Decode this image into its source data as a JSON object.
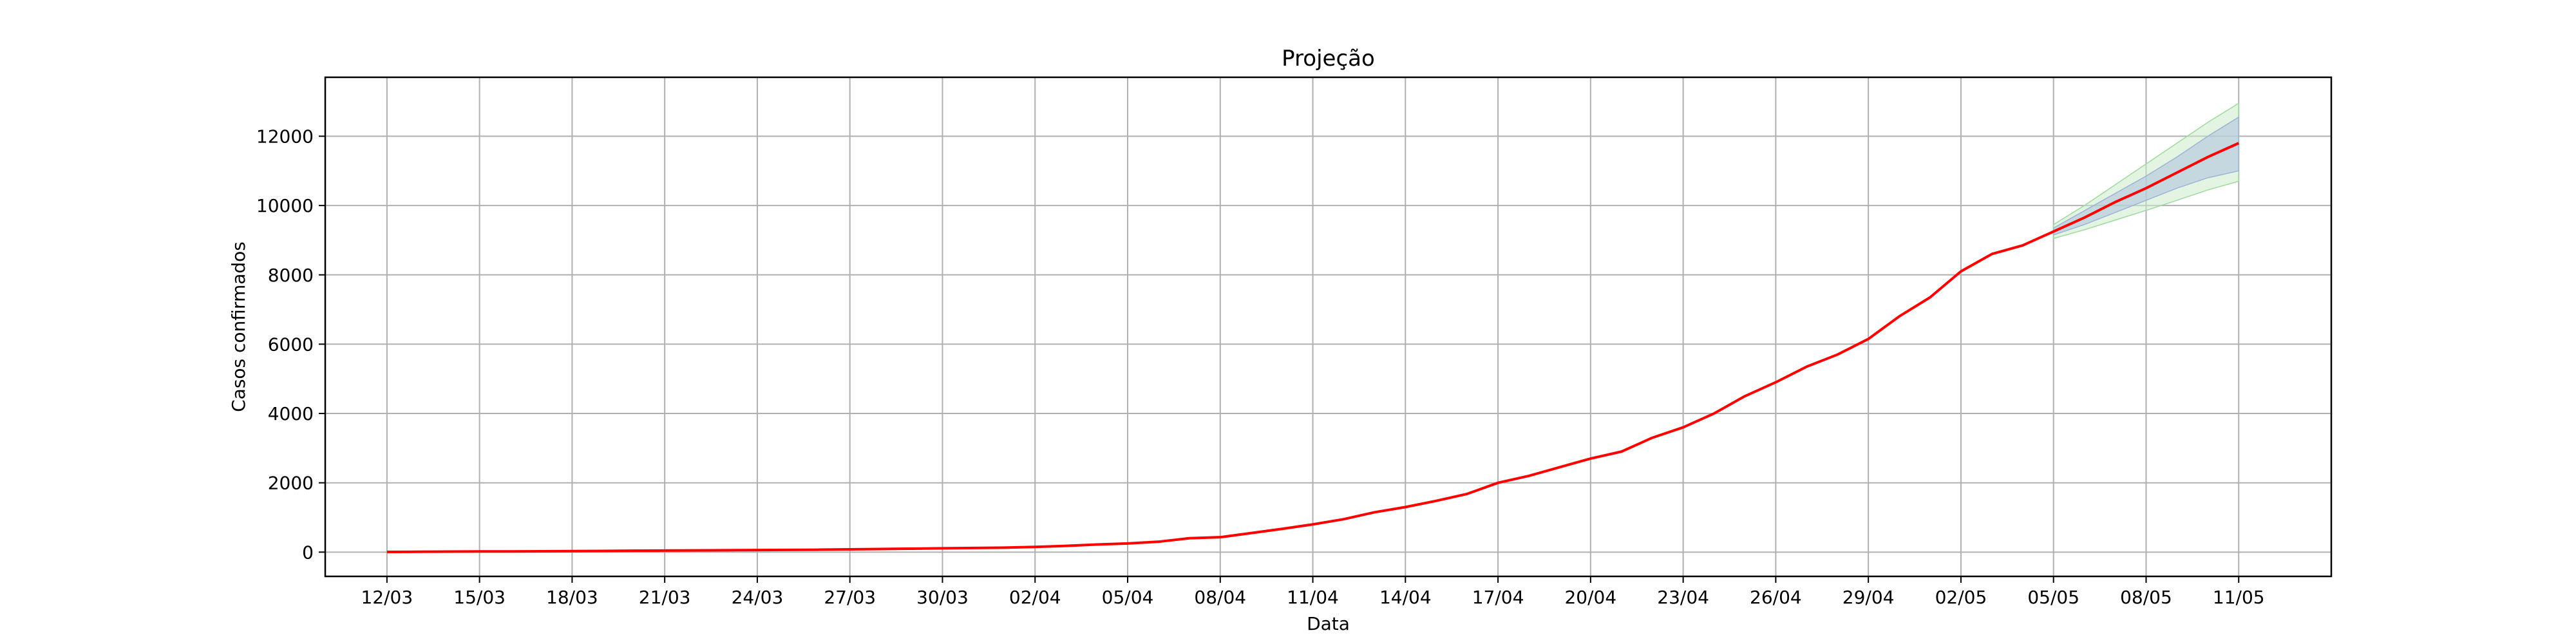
{
  "chart_data": {
    "type": "line",
    "title": "Projeção",
    "xlabel": "Data",
    "ylabel": "Casos confirmados",
    "xlim": [
      -2.0,
      63.0
    ],
    "ylim": [
      -700,
      13700
    ],
    "grid": true,
    "x_tick_positions": [
      0,
      3,
      6,
      9,
      12,
      15,
      18,
      21,
      24,
      27,
      30,
      33,
      36,
      39,
      42,
      45,
      48,
      51,
      54,
      57,
      60
    ],
    "x_tick_labels": [
      "12/03",
      "15/03",
      "18/03",
      "21/03",
      "24/03",
      "27/03",
      "30/03",
      "02/04",
      "05/04",
      "08/04",
      "11/04",
      "14/04",
      "17/04",
      "20/04",
      "23/04",
      "26/04",
      "29/04",
      "02/05",
      "05/05",
      "08/05",
      "11/05"
    ],
    "y_ticks": [
      0,
      2000,
      4000,
      6000,
      8000,
      10000,
      12000
    ],
    "colors": {
      "line": "#ff0000",
      "band_inner": "#b0c4de",
      "band_outer": "#ccebcc",
      "grid": "#b0b0b0",
      "axes": "#000000"
    },
    "series": [
      {
        "x": [
          0,
          1,
          2,
          3,
          4,
          5,
          6,
          7,
          8,
          9,
          10,
          11,
          12,
          13,
          14,
          15,
          16,
          17,
          18,
          19,
          20,
          21,
          22,
          23,
          24,
          25,
          26,
          27,
          28,
          29,
          30,
          31,
          32,
          33,
          34,
          35,
          36,
          37,
          38,
          39,
          40,
          41,
          42,
          43,
          44,
          45,
          46,
          47,
          48,
          49,
          50,
          51,
          52,
          53,
          54,
          55,
          56,
          57,
          58,
          59,
          60
        ],
        "values": [
          5,
          10,
          15,
          20,
          20,
          25,
          30,
          35,
          40,
          45,
          50,
          55,
          60,
          65,
          70,
          80,
          90,
          100,
          110,
          120,
          130,
          150,
          180,
          220,
          250,
          300,
          400,
          430,
          550,
          670,
          800,
          950,
          1150,
          1300,
          1480,
          1680,
          2000,
          2200,
          2450,
          2700,
          2900,
          3300,
          3600,
          4000,
          4500,
          4900,
          5350,
          5700,
          6150,
          6800,
          7350,
          8100,
          8600,
          8850,
          9250,
          9650,
          10100,
          10500,
          10950,
          11400,
          11800
        ]
      }
    ],
    "bands": [
      {
        "x": [
          54,
          55,
          56,
          57,
          58,
          59,
          60
        ],
        "low": [
          9050,
          9300,
          9580,
          9860,
          10150,
          10450,
          10700
        ],
        "high": [
          9450,
          10000,
          10600,
          11200,
          11800,
          12400,
          12950
        ]
      },
      {
        "x": [
          54,
          55,
          56,
          57,
          58,
          59,
          60
        ],
        "low": [
          9150,
          9450,
          9800,
          10150,
          10500,
          10800,
          11000
        ],
        "high": [
          9350,
          9850,
          10350,
          10850,
          11400,
          12000,
          12550
        ]
      }
    ]
  }
}
